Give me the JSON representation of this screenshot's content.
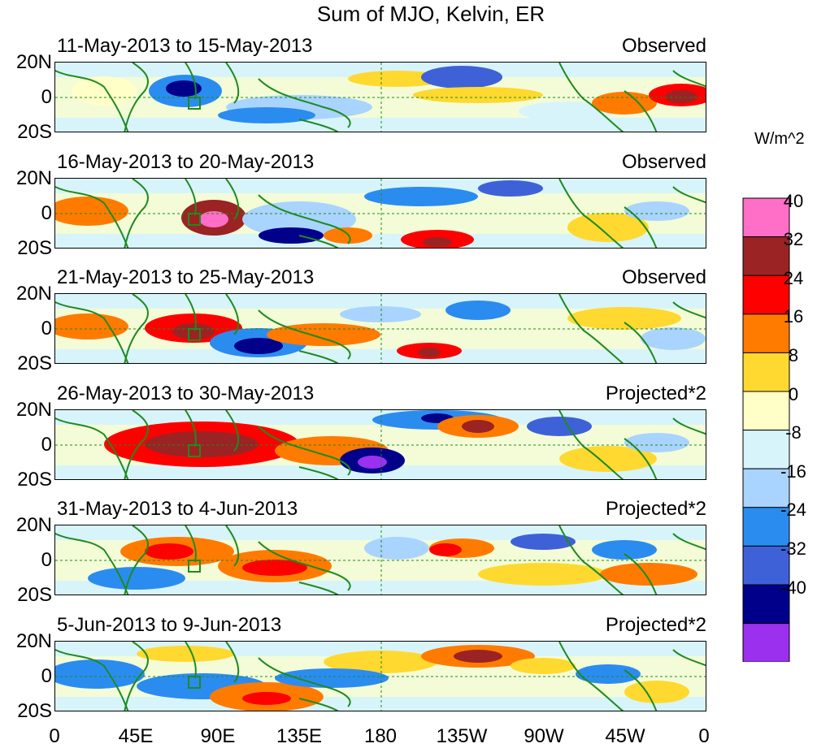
{
  "title": "Sum of MJO, Kelvin, ER",
  "units": "W/m^2",
  "panels": [
    {
      "dates": "11-May-2013 to 15-May-2013",
      "tag": "Observed"
    },
    {
      "dates": "16-May-2013 to 20-May-2013",
      "tag": "Observed"
    },
    {
      "dates": "21-May-2013 to 25-May-2013",
      "tag": "Observed"
    },
    {
      "dates": "26-May-2013 to 30-May-2013",
      "tag": "Projected*2"
    },
    {
      "dates": "31-May-2013 to 4-Jun-2013",
      "tag": "Projected*2"
    },
    {
      "dates": "5-Jun-2013 to 9-Jun-2013",
      "tag": "Projected*2"
    }
  ],
  "lat_labels": [
    "20N",
    "0",
    "20S"
  ],
  "lon_labels": [
    "0",
    "45E",
    "90E",
    "135E",
    "180",
    "135W",
    "90W",
    "45W",
    "0"
  ],
  "colorbar": {
    "levels": [
      "40",
      "32",
      "24",
      "16",
      "8",
      "0",
      "-8",
      "-16",
      "-24",
      "-32",
      "-40"
    ],
    "colors": [
      "#ff6ec7",
      "#9b2323",
      "#ff0000",
      "#ff7b00",
      "#ffd92f",
      "#ffffc8",
      "#d8f4fb",
      "#a9d4ff",
      "#2b8cf0",
      "#3f61d8",
      "#00008b",
      "#9b30ef"
    ]
  },
  "colors": {
    "coast": "#1f8a1f",
    "box": "#1f8a1f",
    "guides": "#1f8a1f"
  }
}
